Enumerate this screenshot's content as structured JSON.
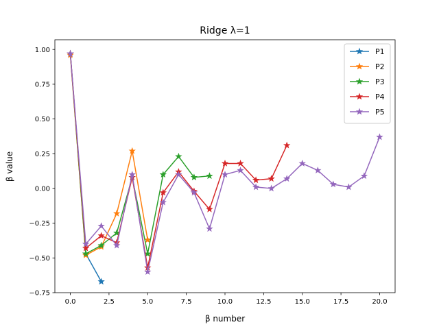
{
  "chart_data": {
    "type": "line",
    "title": "Ridge λ=1",
    "xlabel": "β number",
    "ylabel": "β value",
    "xlim": [
      -1.0,
      21.0
    ],
    "ylim": [
      -0.75,
      1.07
    ],
    "xticks": [
      0.0,
      2.5,
      5.0,
      7.5,
      10.0,
      12.5,
      15.0,
      17.5,
      20.0
    ],
    "xtick_labels": [
      "0.0",
      "2.5",
      "5.0",
      "7.5",
      "10.0",
      "12.5",
      "15.0",
      "17.5",
      "20.0"
    ],
    "yticks": [
      -0.75,
      -0.5,
      -0.25,
      0.0,
      0.25,
      0.5,
      0.75,
      1.0
    ],
    "ytick_labels": [
      "−0.75",
      "−0.50",
      "−0.25",
      "0.00",
      "0.25",
      "0.50",
      "0.75",
      "1.00"
    ],
    "grid": false,
    "legend_position": "top-right",
    "marker": "star",
    "series": [
      {
        "name": "P1",
        "color": "#1f77b4",
        "x": [
          0,
          1,
          2
        ],
        "y": [
          0.97,
          -0.47,
          -0.67
        ]
      },
      {
        "name": "P2",
        "color": "#ff7f0e",
        "x": [
          0,
          1,
          2,
          3,
          4,
          5
        ],
        "y": [
          0.96,
          -0.48,
          -0.42,
          -0.18,
          0.27,
          -0.37
        ]
      },
      {
        "name": "P3",
        "color": "#2ca02c",
        "x": [
          0,
          1,
          2,
          3,
          4,
          5,
          6,
          7,
          8,
          9
        ],
        "y": [
          0.97,
          -0.47,
          -0.41,
          -0.32,
          0.08,
          -0.47,
          0.1,
          0.23,
          0.08,
          0.09
        ]
      },
      {
        "name": "P4",
        "color": "#d62728",
        "x": [
          0,
          1,
          2,
          3,
          4,
          5,
          6,
          7,
          8,
          9,
          10,
          11,
          12,
          13,
          14
        ],
        "y": [
          0.97,
          -0.43,
          -0.34,
          -0.39,
          0.08,
          -0.57,
          -0.03,
          0.12,
          -0.02,
          -0.15,
          0.18,
          0.18,
          0.06,
          0.07,
          0.31
        ]
      },
      {
        "name": "P5",
        "color": "#9467bd",
        "x": [
          0,
          1,
          2,
          3,
          4,
          5,
          6,
          7,
          8,
          9,
          10,
          11,
          12,
          13,
          14,
          15,
          16,
          17,
          18,
          19,
          20
        ],
        "y": [
          0.97,
          -0.4,
          -0.27,
          -0.41,
          0.1,
          -0.6,
          -0.1,
          0.1,
          -0.03,
          -0.29,
          0.1,
          0.13,
          0.01,
          0.0,
          0.07,
          0.18,
          0.13,
          0.03,
          0.01,
          0.09,
          0.37
        ]
      }
    ]
  }
}
